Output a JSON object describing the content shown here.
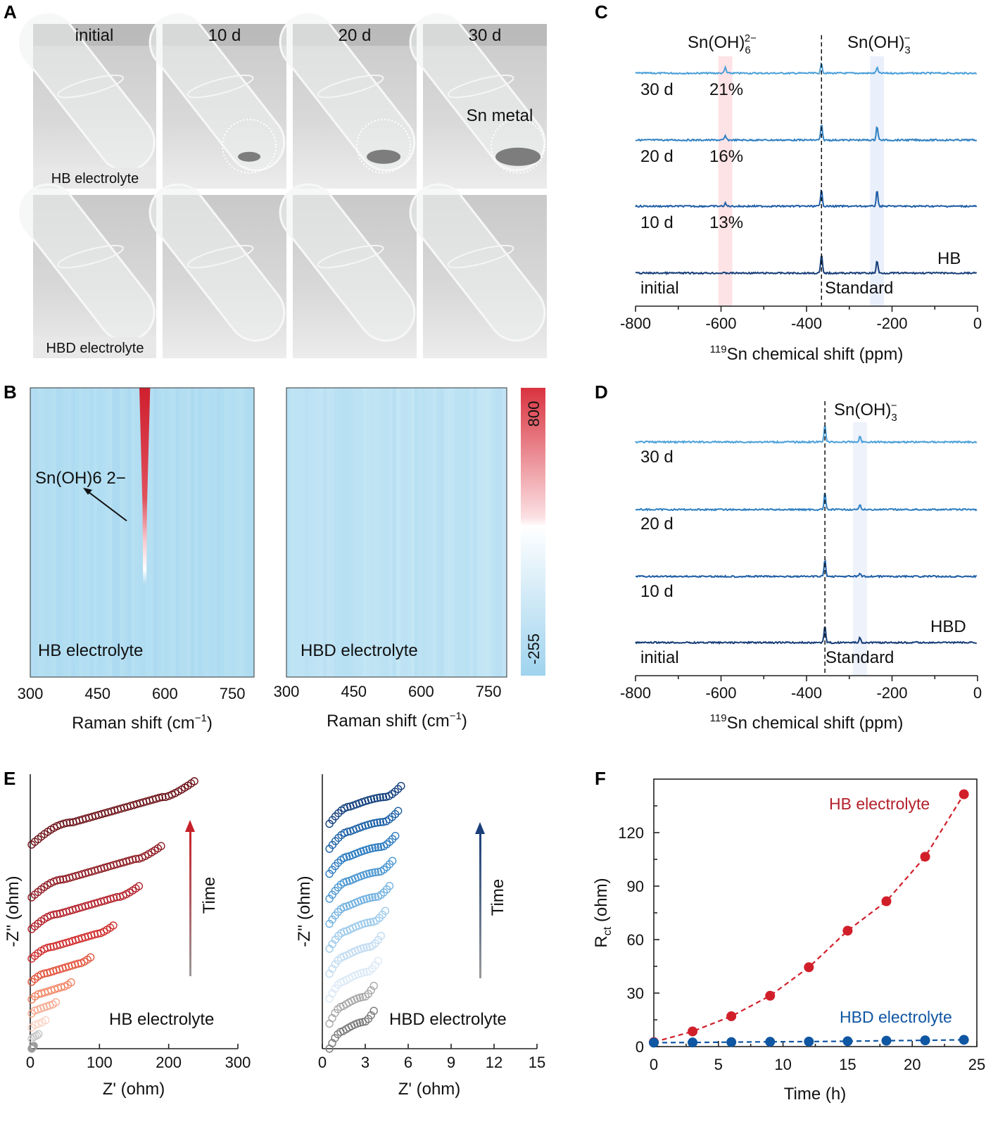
{
  "panels": {
    "A": "A",
    "B": "B",
    "C": "C",
    "D": "D",
    "E": "E",
    "F": "F"
  },
  "photos": {
    "columns": [
      "initial",
      "10 d",
      "20 d",
      "30 d"
    ],
    "row1_label": "HB electrolyte",
    "row2_label": "HBD electrolyte",
    "annotation": "Sn metal"
  },
  "labels": {
    "sn_oh6": {
      "base": "Sn(OH)",
      "sub": "6",
      "sup": "2−"
    },
    "sn_oh3": {
      "base": "Sn(OH)",
      "sub": "3",
      "sup": "−"
    },
    "nmr_xlabel": {
      "sup": "119",
      "text": "Sn chemical shift (ppm)"
    },
    "raman_xlabel": {
      "text": "Raman shift (cm",
      "sup": "−1",
      "close": ")"
    },
    "standard": "Standard",
    "initial": "initial",
    "hb": "HB",
    "hbd": "HBD",
    "hb_electrolyte": "HB electrolyte",
    "hbd_electrolyte": "HBD electrolyte",
    "time": "Time",
    "zpp": "-Z'' (ohm)",
    "zp": "Z' (ohm)",
    "rct": {
      "base": "R",
      "sub": "ct",
      "rest": " (ohm)"
    },
    "time_h": "Time (h)"
  },
  "chart_data": [
    {
      "panel": "B",
      "type": "heatmap",
      "xlabel": "Raman shift (cm−1)",
      "xlim": [
        300,
        800
      ],
      "xticks": [
        "300",
        "450",
        "600",
        "750"
      ],
      "colorbar": {
        "min": "-255",
        "max": "800",
        "colors": [
          "#a9d8ef",
          "#ffffff",
          "#d9333f"
        ]
      },
      "maps": [
        {
          "label": "HB electrolyte",
          "peak_cm1": 555,
          "annotation": "Sn(OH)6 2−"
        },
        {
          "label": "HBD electrolyte",
          "peak_cm1": null
        }
      ]
    },
    {
      "panel": "C",
      "type": "line",
      "xlabel": "119Sn chemical shift (ppm)",
      "xlim": [
        -800,
        0
      ],
      "xticks": [
        "-800",
        "-600",
        "-400",
        "-200",
        "0"
      ],
      "standard_ppm": -365,
      "bands": [
        {
          "ppm": -590,
          "color": "#fde3e6"
        },
        {
          "ppm": -235,
          "color": "#eaf0fb"
        }
      ],
      "series": [
        {
          "name": "30 d",
          "percent": "21%",
          "color": "#4a9fd8",
          "peaks": [
            {
              "ppm": -590,
              "h": 0.2
            },
            {
              "ppm": -365,
              "h": 0.35
            },
            {
              "ppm": -235,
              "h": 0.2
            }
          ]
        },
        {
          "name": "20 d",
          "percent": "16%",
          "color": "#2f80c2",
          "peaks": [
            {
              "ppm": -590,
              "h": 0.15
            },
            {
              "ppm": -365,
              "h": 0.55
            },
            {
              "ppm": -235,
              "h": 0.5
            }
          ]
        },
        {
          "name": "10 d",
          "percent": "13%",
          "color": "#1f5ea6",
          "peaks": [
            {
              "ppm": -590,
              "h": 0.1
            },
            {
              "ppm": -365,
              "h": 0.6
            },
            {
              "ppm": -235,
              "h": 0.55
            }
          ]
        },
        {
          "name": "initial",
          "percent": "",
          "color": "#163d78",
          "peaks": [
            {
              "ppm": -365,
              "h": 0.65
            },
            {
              "ppm": -235,
              "h": 0.45
            }
          ]
        }
      ]
    },
    {
      "panel": "D",
      "type": "line",
      "xlabel": "119Sn chemical shift (ppm)",
      "xlim": [
        -800,
        0
      ],
      "xticks": [
        "-800",
        "-600",
        "-400",
        "-200",
        "0"
      ],
      "standard_ppm": -357,
      "bands": [
        {
          "ppm": -275,
          "color": "#eef2fb"
        }
      ],
      "series": [
        {
          "name": "30 d",
          "color": "#4a9fd8",
          "peaks": [
            {
              "ppm": -357,
              "h": 0.65
            },
            {
              "ppm": -275,
              "h": 0.2
            }
          ]
        },
        {
          "name": "20 d",
          "color": "#2f80c2",
          "peaks": [
            {
              "ppm": -357,
              "h": 0.6
            },
            {
              "ppm": -275,
              "h": 0.15
            }
          ]
        },
        {
          "name": "10 d",
          "color": "#1f5ea6",
          "peaks": [
            {
              "ppm": -357,
              "h": 0.6
            },
            {
              "ppm": -275,
              "h": 0.1
            }
          ]
        },
        {
          "name": "initial",
          "color": "#163d78",
          "peaks": [
            {
              "ppm": -357,
              "h": 0.6
            },
            {
              "ppm": -275,
              "h": 0.2
            }
          ]
        }
      ]
    },
    {
      "panel": "E-left",
      "type": "scatter",
      "label": "HB electrolyte",
      "xlabel": "Z' (ohm)",
      "ylabel": "-Z'' (ohm)",
      "xlim": [
        0,
        300
      ],
      "xticks": [
        "0",
        "100",
        "200",
        "300"
      ],
      "curve_max_zreal": [
        3,
        10,
        20,
        35,
        57,
        85,
        118,
        155,
        187,
        235
      ],
      "colors": [
        "#9a9a9a",
        "#c8c8c8",
        "#fbd3c4",
        "#f7ac92",
        "#f28463",
        "#e2553d",
        "#cf2b2b",
        "#b3202a",
        "#8e1a22",
        "#6b1016"
      ]
    },
    {
      "panel": "E-right",
      "type": "scatter",
      "label": "HBD electrolyte",
      "xlabel": "Z' (ohm)",
      "ylabel": "-Z'' (ohm)",
      "xlim": [
        0,
        15
      ],
      "xticks": [
        "0",
        "3",
        "6",
        "9",
        "12",
        "15"
      ],
      "curve_max_zreal": [
        3.5,
        3.5,
        3.8,
        4.0,
        4.3,
        4.6,
        4.8,
        5.0,
        5.2,
        5.4
      ],
      "colors": [
        "#7a7a7a",
        "#a8a8a8",
        "#dbe9f6",
        "#c2dcf1",
        "#9ecbeb",
        "#73b2e0",
        "#4d98d2",
        "#2d7cc0",
        "#1d61a6",
        "#14407e"
      ]
    },
    {
      "panel": "F",
      "type": "scatter",
      "xlabel": "Time (h)",
      "ylabel": "Rct (ohm)",
      "xlim": [
        0,
        25
      ],
      "ylim": [
        0,
        150
      ],
      "xticks": [
        "0",
        "5",
        "10",
        "15",
        "20",
        "25"
      ],
      "yticks": [
        "0",
        "30",
        "60",
        "90",
        "120"
      ],
      "x": [
        0,
        3,
        6,
        9,
        12,
        15,
        18,
        21,
        24
      ],
      "series": [
        {
          "name": "HB electrolyte",
          "color": "#d11f2a",
          "values": [
            2.5,
            8.5,
            17,
            28.5,
            44.5,
            65,
            81.5,
            106.5,
            141.5
          ]
        },
        {
          "name": "HBD electrolyte",
          "color": "#0f56a3",
          "values": [
            2.2,
            2.3,
            2.5,
            2.7,
            2.8,
            3.0,
            3.3,
            3.5,
            3.8
          ]
        }
      ]
    }
  ]
}
